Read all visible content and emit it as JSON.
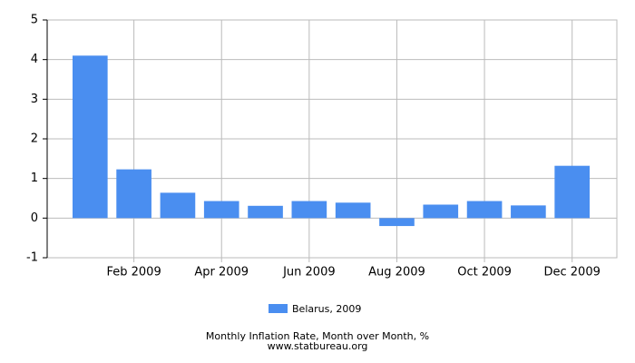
{
  "chart_data": {
    "type": "bar",
    "title": "Monthly Inflation Rate, Month over Month, %",
    "source": "www.statbureau.org",
    "categories": [
      null,
      "Feb 2009",
      null,
      "Apr 2009",
      null,
      "Jun 2009",
      null,
      "Aug 2009",
      null,
      "Oct 2009",
      null,
      "Dec 2009"
    ],
    "series": [
      {
        "name": "Belarus, 2009",
        "color": "#4a8ef0",
        "values": [
          4.1,
          1.23,
          0.64,
          0.43,
          0.31,
          0.43,
          0.39,
          -0.2,
          0.34,
          0.43,
          0.32,
          1.32
        ]
      }
    ],
    "ylim": [
      -1,
      5
    ],
    "yticks": [
      -1,
      0,
      1,
      2,
      3,
      4,
      5
    ],
    "grid": true
  }
}
